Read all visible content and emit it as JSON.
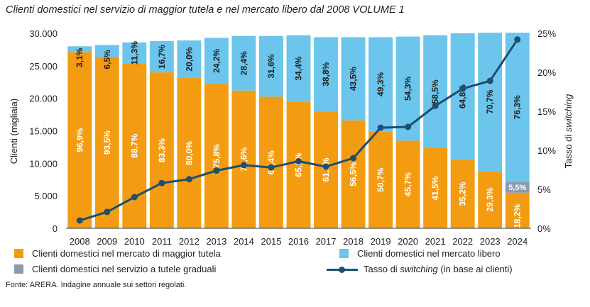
{
  "title": "Clienti domestici nel servizio di maggior tutela e nel mercato libero dal 2008 VOLUME 1",
  "source": "Fonte: ARERA. Indagine annuale sui settori regolati.",
  "colors": {
    "tutela": "#F39C12",
    "libero": "#6CC5EC",
    "graduali": "#8C9AAE",
    "switching": "#1F4E6E"
  },
  "legend": {
    "tutela": "Clienti domestici nel mercato di maggior tutela",
    "libero": "Clienti domestici nel mercato libero",
    "graduali": "Clienti domestici nel servizio a tutele graduali",
    "switching_prefix": "Tasso di ",
    "switching_italic": "switching",
    "switching_suffix": " (in base ai clienti)"
  },
  "chart_data": {
    "type": "bar",
    "stacked": true,
    "categories": [
      "2008",
      "2009",
      "2010",
      "2011",
      "2012",
      "2013",
      "2014",
      "2015",
      "2016",
      "2017",
      "2018",
      "2019",
      "2020",
      "2021",
      "2022",
      "2023",
      "2024"
    ],
    "total_clients": [
      28000,
      28200,
      28600,
      28800,
      28900,
      29300,
      29600,
      29600,
      29700,
      29400,
      29400,
      29400,
      29500,
      29700,
      30000,
      30100,
      30100
    ],
    "series": [
      {
        "name": "Clienti domestici nel mercato di maggior tutela",
        "pct_labels": [
          "96,9%",
          "93,5%",
          "88,7%",
          "83,3%",
          "80,0%",
          "75,8%",
          "71,6%",
          "68,4%",
          "65,6%",
          "61,2%",
          "56,5%",
          "50,7%",
          "45,7%",
          "41,5%",
          "35,2%",
          "29,3%",
          "18,2%"
        ],
        "values_pct": [
          96.9,
          93.5,
          88.7,
          83.3,
          80.0,
          75.8,
          71.6,
          68.4,
          65.6,
          61.2,
          56.5,
          50.7,
          45.7,
          41.5,
          35.2,
          29.3,
          18.2
        ]
      },
      {
        "name": "Clienti domestici nel mercato libero",
        "pct_labels": [
          "3,1%",
          "6,5%",
          "11,3%",
          "16,7%",
          "20,0%",
          "24,2%",
          "28,4%",
          "31,6%",
          "34,4%",
          "38,8%",
          "43,5%",
          "49,3%",
          "54,3%",
          "58,5%",
          "64,8%",
          "70,7%",
          "76,3%"
        ],
        "values_pct": [
          3.1,
          6.5,
          11.3,
          16.7,
          20.0,
          24.2,
          28.4,
          31.6,
          34.4,
          38.8,
          43.5,
          49.3,
          54.3,
          58.5,
          64.8,
          70.7,
          76.3
        ]
      },
      {
        "name": "Clienti domestici nel servizio a tutele graduali",
        "pct_labels": [
          "",
          "",
          "",
          "",
          "",
          "",
          "",
          "",
          "",
          "",
          "",
          "",
          "",
          "",
          "",
          "",
          "5,5%"
        ],
        "values_pct": [
          0,
          0,
          0,
          0,
          0,
          0,
          0,
          0,
          0,
          0,
          0,
          0,
          0,
          0,
          0,
          0,
          5.5
        ]
      }
    ],
    "switching_rate_pct": [
      1.0,
      2.1,
      4.0,
      5.8,
      6.3,
      7.4,
      8.1,
      7.8,
      8.6,
      7.9,
      9.0,
      12.9,
      13.0,
      15.7,
      17.9,
      18.9,
      24.2
    ],
    "y_left": {
      "label": "Clienti (migliaia)",
      "min": 0,
      "max": 30000,
      "ticks": [
        "0",
        "5.000",
        "10.000",
        "15.000",
        "20.000",
        "25.000",
        "30.000"
      ]
    },
    "y_right": {
      "label_prefix": "Tasso di ",
      "label_italic": "switching",
      "min": 0,
      "max": 25,
      "ticks": [
        "0%",
        "5%",
        "10%",
        "15%",
        "20%",
        "25%"
      ]
    }
  }
}
